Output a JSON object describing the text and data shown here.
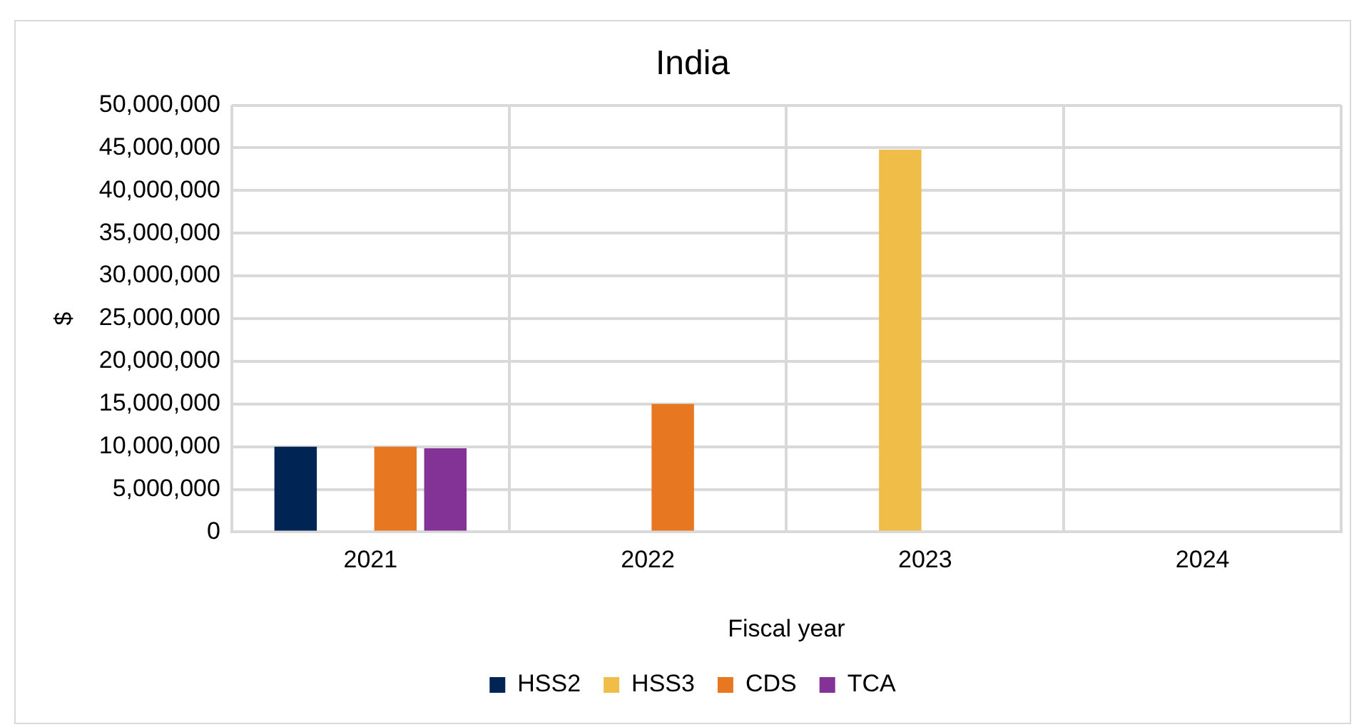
{
  "chart_data": {
    "type": "bar",
    "title": "India",
    "xlabel": "Fiscal year",
    "ylabel": "$",
    "categories": [
      "2021",
      "2022",
      "2023",
      "2024"
    ],
    "series": [
      {
        "name": "HSS2",
        "color": "#002554",
        "values": [
          10000000,
          null,
          null,
          null
        ]
      },
      {
        "name": "HSS3",
        "color": "#f0bd48",
        "values": [
          null,
          null,
          44800000,
          null
        ]
      },
      {
        "name": "CDS",
        "color": "#e87722",
        "values": [
          10000000,
          15000000,
          null,
          null
        ]
      },
      {
        "name": "TCA",
        "color": "#833296",
        "values": [
          9800000,
          null,
          null,
          null
        ]
      }
    ],
    "ylim": [
      0,
      50000000
    ],
    "yticks": [
      0,
      {
        "value": 5000000,
        "label": "5,000,000"
      },
      {
        "value": 10000000,
        "label": "10,000,000"
      },
      {
        "value": 15000000,
        "label": "15,000,000"
      },
      {
        "value": 20000000,
        "label": "20,000,000"
      },
      {
        "value": 25000000,
        "label": "25,000,000"
      },
      {
        "value": 30000000,
        "label": "30,000,000"
      },
      {
        "value": 35000000,
        "label": "35,000,000"
      },
      {
        "value": 40000000,
        "label": "40,000,000"
      },
      {
        "value": 45000000,
        "label": "45,000,000"
      },
      {
        "value": 50000000,
        "label": "50,000,000"
      }
    ],
    "grid": true,
    "legend": "bottom"
  }
}
